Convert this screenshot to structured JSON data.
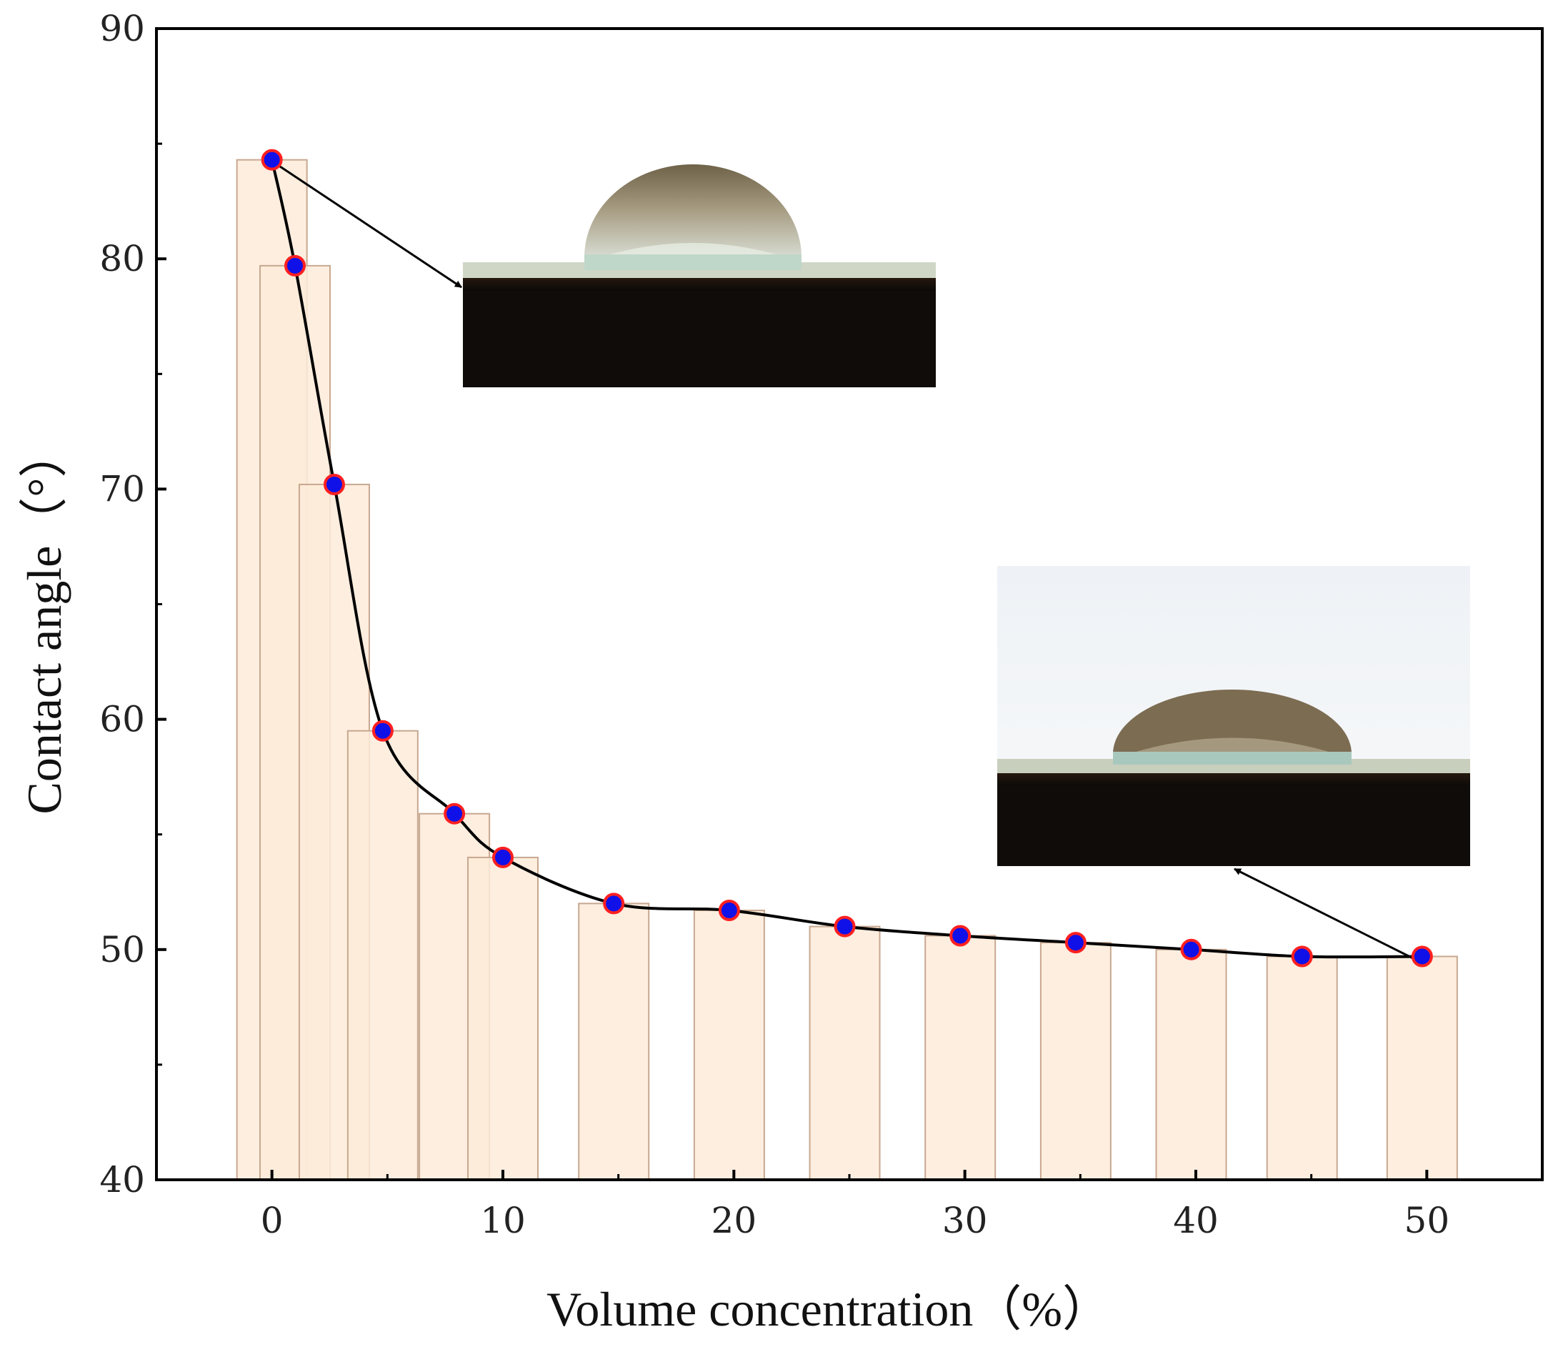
{
  "chart_data": {
    "type": "bar",
    "xlabel": "Volume concentration（%）",
    "ylabel": "Contact angle（°）",
    "xlim": [
      -5,
      55
    ],
    "ylim": [
      40,
      90
    ],
    "x_ticks": [
      0,
      10,
      20,
      30,
      40,
      50
    ],
    "y_ticks": [
      40,
      50,
      60,
      70,
      80,
      90
    ],
    "grid": false,
    "series": [
      {
        "type": "bar",
        "x": [
          0,
          1,
          2.7,
          4.8,
          7.9,
          10,
          14.8,
          19.8,
          24.8,
          29.8,
          34.8,
          39.8,
          44.6,
          49.8
        ],
        "values": [
          84.3,
          79.7,
          70.2,
          59.5,
          55.9,
          54.0,
          52.0,
          51.7,
          51.0,
          50.6,
          50.3,
          50.0,
          49.7,
          49.7
        ]
      },
      {
        "type": "line",
        "x": [
          0,
          1,
          2.7,
          4.8,
          7.9,
          10,
          14.8,
          19.8,
          24.8,
          29.8,
          34.8,
          39.8,
          44.6,
          49.8
        ],
        "values": [
          84.3,
          79.7,
          70.2,
          59.5,
          55.9,
          54.0,
          52.0,
          51.7,
          51.0,
          50.6,
          50.3,
          50.0,
          49.7,
          49.7
        ]
      }
    ],
    "annotations": [
      {
        "type": "inset-photo",
        "subject": "water droplet on surface",
        "points_to_x": 0
      },
      {
        "type": "inset-photo",
        "subject": "water droplet on surface",
        "points_to_x": 49.8
      }
    ],
    "colors": {
      "bar_fill": "#fdebd9",
      "bar_stroke": "#c8a890",
      "line": "#000000",
      "marker_fill": "#1010e8",
      "marker_stroke": "#ff2020"
    }
  }
}
